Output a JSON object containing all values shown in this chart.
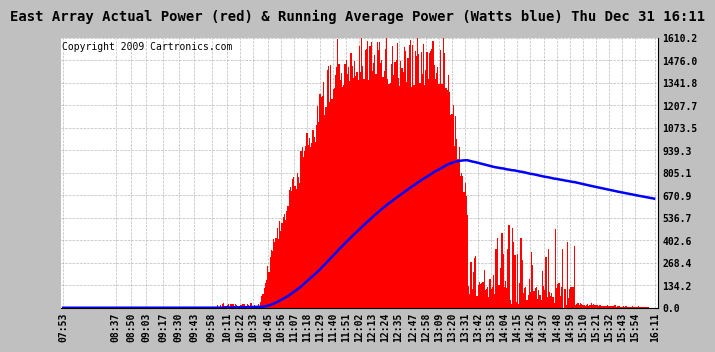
{
  "title": "East Array Actual Power (red) & Running Average Power (Watts blue) Thu Dec 31 16:11",
  "copyright": "Copyright 2009 Cartronics.com",
  "yticks": [
    0.0,
    134.2,
    268.4,
    402.6,
    536.7,
    670.9,
    805.1,
    939.3,
    1073.5,
    1207.7,
    1341.8,
    1476.0,
    1610.2
  ],
  "xtick_labels": [
    "07:53",
    "08:37",
    "08:50",
    "09:03",
    "09:17",
    "09:30",
    "09:43",
    "09:58",
    "10:11",
    "10:22",
    "10:33",
    "10:45",
    "10:56",
    "11:07",
    "11:18",
    "11:29",
    "11:40",
    "11:51",
    "12:02",
    "12:13",
    "12:24",
    "12:35",
    "12:47",
    "12:58",
    "13:09",
    "13:20",
    "13:31",
    "13:42",
    "13:53",
    "14:04",
    "14:15",
    "14:26",
    "14:37",
    "14:48",
    "14:59",
    "15:10",
    "15:21",
    "15:32",
    "15:43",
    "15:54",
    "16:11"
  ],
  "title_bg_color": "#c0c0c0",
  "plot_bg_color": "#ffffff",
  "fig_bg_color": "#c0c0c0",
  "bar_color": "#ff0000",
  "line_color": "#0000ff",
  "title_fontsize": 10,
  "copyright_fontsize": 7,
  "tick_fontsize": 7,
  "ymax": 1610.2
}
